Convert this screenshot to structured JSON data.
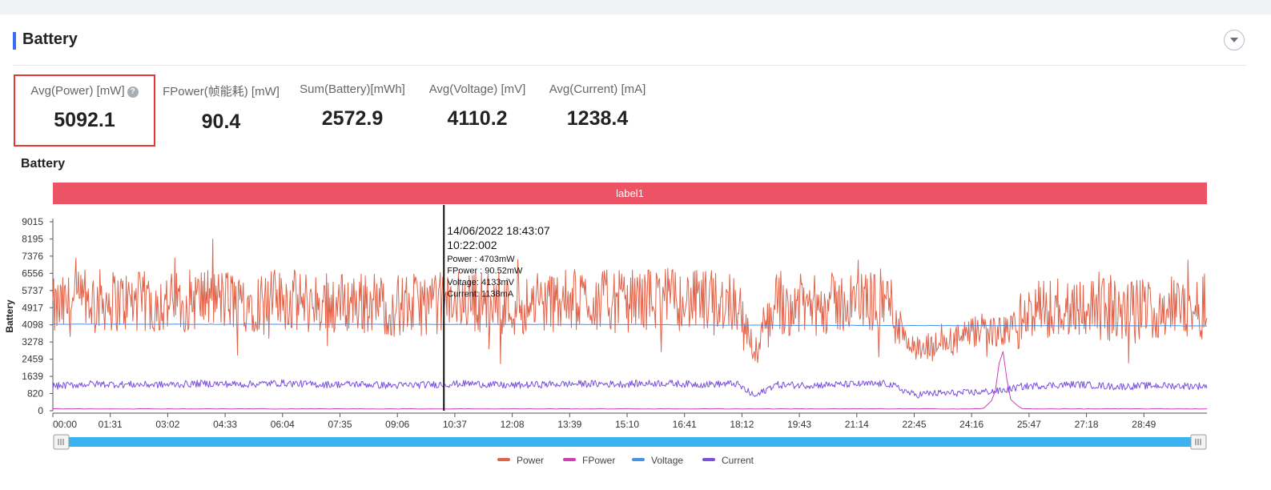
{
  "section": {
    "title": "Battery"
  },
  "metrics": [
    {
      "label": "Avg(Power) [mW]",
      "value": "5092.1"
    },
    {
      "label": "FPower(帧能耗) [mW]",
      "value": "90.4"
    },
    {
      "label": "Sum(Battery)[mWh]",
      "value": "2572.9"
    },
    {
      "label": "Avg(Voltage) [mV]",
      "value": "4110.2"
    },
    {
      "label": "Avg(Current) [mA]",
      "value": "1238.4"
    }
  ],
  "help_icon": "question-icon",
  "collapse_icon": "chevron-down-icon",
  "chart_data": {
    "type": "line",
    "title": "Battery",
    "ylabel": "Battery",
    "xlabel": "",
    "band_label": "label1",
    "ylim": [
      0,
      9015
    ],
    "y_ticks": [
      "0",
      "820",
      "1639",
      "2459",
      "3278",
      "4098",
      "4917",
      "5737",
      "6556",
      "7376",
      "8195",
      "9015"
    ],
    "x_ticks": [
      "00:00",
      "01:31",
      "03:02",
      "04:33",
      "06:04",
      "07:35",
      "09:06",
      "10:37",
      "12:08",
      "13:39",
      "15:10",
      "16:41",
      "18:12",
      "19:43",
      "21:14",
      "22:45",
      "24:16",
      "25:47",
      "27:18",
      "28:49"
    ],
    "x_range_minutes": [
      0,
      30.4
    ],
    "colors": {
      "Power": "#e0634a",
      "FPower": "#cc3fb8",
      "Voltage": "#4a90e8",
      "Current": "#7b4fe0",
      "band": "#ec5465",
      "slider": "#3ab3f0"
    },
    "legend_position": "bottom-center",
    "grid": false,
    "series": [
      {
        "name": "Power",
        "x": [
          0,
          1,
          2,
          3,
          4,
          5,
          6,
          7,
          8,
          9,
          10,
          11,
          12,
          13,
          14,
          15,
          16,
          17,
          18,
          18.5,
          19,
          20,
          21,
          22,
          22.7,
          23,
          23.5,
          24,
          24.5,
          25,
          25.5,
          26,
          27,
          28,
          29,
          30
        ],
        "values": [
          4800,
          5300,
          5200,
          5100,
          5400,
          5200,
          5300,
          5100,
          5200,
          5000,
          5100,
          5300,
          5000,
          5200,
          5300,
          5200,
          5400,
          5200,
          5300,
          2700,
          5100,
          5000,
          5200,
          5300,
          2800,
          2900,
          3200,
          3500,
          3900,
          3700,
          4300,
          4800,
          5100,
          4700,
          4900,
          4900
        ]
      },
      {
        "name": "FPower",
        "x": [
          0,
          5,
          10,
          15,
          20,
          24.5,
          24.8,
          25,
          25.2,
          25.5,
          30
        ],
        "values": [
          90,
          90,
          90,
          90,
          90,
          90,
          600,
          3200,
          600,
          90,
          90
        ]
      },
      {
        "name": "Voltage",
        "x": [
          0,
          5,
          10,
          15,
          18.5,
          20,
          25,
          30
        ],
        "values": [
          4130,
          4125,
          4120,
          4115,
          4080,
          4075,
          4060,
          4050
        ]
      },
      {
        "name": "Current",
        "x": [
          0,
          1,
          2,
          3,
          4,
          5,
          6,
          7,
          8,
          9,
          10,
          11,
          12,
          13,
          14,
          15,
          16,
          17,
          18,
          18.5,
          19,
          20,
          21,
          22,
          22.7,
          23,
          24,
          25,
          25.5,
          26,
          27,
          28,
          29,
          30
        ],
        "values": [
          1170,
          1280,
          1250,
          1240,
          1300,
          1260,
          1320,
          1250,
          1270,
          1200,
          1250,
          1300,
          1200,
          1260,
          1290,
          1270,
          1320,
          1260,
          1290,
          680,
          1230,
          1220,
          1260,
          1290,
          750,
          820,
          850,
          950,
          1150,
          1200,
          1260,
          1150,
          1200,
          1180
        ]
      }
    ],
    "tooltip": {
      "date": "14/06/2022 18:43:07",
      "time": "10:22:002",
      "lines": [
        "Power   : 4703mW",
        "FPower : 90.52mW",
        "Voltage: 4133mV",
        "Current: 1138mA"
      ],
      "cursor_x_minutes": 10.3
    },
    "legend": [
      "Power",
      "FPower",
      "Voltage",
      "Current"
    ]
  }
}
